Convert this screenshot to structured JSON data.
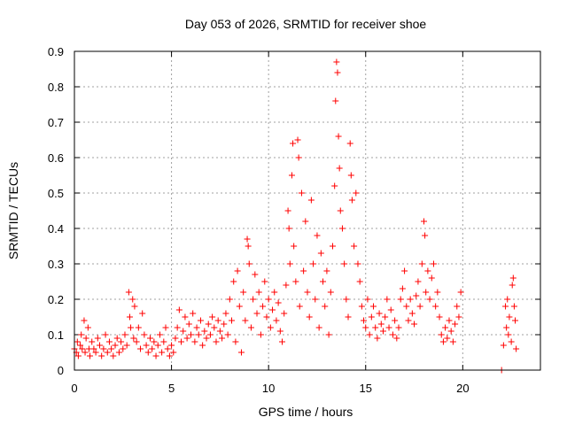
{
  "chart_data": {
    "type": "scatter",
    "title": "Day 053 of 2026, SRMTID for receiver shoe",
    "xlabel": "GPS time / hours",
    "ylabel": "SRMTID / TECUs",
    "xlim": [
      0,
      24
    ],
    "ylim": [
      0,
      0.9
    ],
    "xticks": [
      0,
      5,
      10,
      15,
      20
    ],
    "yticks": [
      0,
      0.1,
      0.2,
      0.3,
      0.4,
      0.5,
      0.6,
      0.7,
      0.8,
      0.9
    ],
    "xtick_labels": [
      "0",
      "5",
      "10",
      "15",
      "20"
    ],
    "ytick_labels": [
      "0",
      "0.1",
      "0.2",
      "0.3",
      "0.4",
      "0.5",
      "0.6",
      "0.7",
      "0.8",
      "0.9"
    ],
    "grid": true,
    "marker": "+",
    "color": "#ff0000",
    "series": [
      {
        "name": "SRMTID",
        "points": [
          [
            0.0,
            0.06
          ],
          [
            0.1,
            0.05
          ],
          [
            0.15,
            0.08
          ],
          [
            0.2,
            0.04
          ],
          [
            0.3,
            0.07
          ],
          [
            0.35,
            0.1
          ],
          [
            0.4,
            0.06
          ],
          [
            0.5,
            0.14
          ],
          [
            0.55,
            0.05
          ],
          [
            0.6,
            0.09
          ],
          [
            0.7,
            0.12
          ],
          [
            0.75,
            0.06
          ],
          [
            0.8,
            0.04
          ],
          [
            0.9,
            0.08
          ],
          [
            1.0,
            0.06
          ],
          [
            1.1,
            0.05
          ],
          [
            1.2,
            0.09
          ],
          [
            1.3,
            0.07
          ],
          [
            1.4,
            0.04
          ],
          [
            1.5,
            0.06
          ],
          [
            1.6,
            0.1
          ],
          [
            1.7,
            0.05
          ],
          [
            1.8,
            0.08
          ],
          [
            1.9,
            0.06
          ],
          [
            2.0,
            0.04
          ],
          [
            2.1,
            0.07
          ],
          [
            2.2,
            0.09
          ],
          [
            2.3,
            0.05
          ],
          [
            2.4,
            0.08
          ],
          [
            2.5,
            0.06
          ],
          [
            2.6,
            0.1
          ],
          [
            2.7,
            0.07
          ],
          [
            2.8,
            0.22
          ],
          [
            2.85,
            0.15
          ],
          [
            2.9,
            0.12
          ],
          [
            3.0,
            0.2
          ],
          [
            3.05,
            0.09
          ],
          [
            3.1,
            0.18
          ],
          [
            3.2,
            0.08
          ],
          [
            3.3,
            0.12
          ],
          [
            3.4,
            0.06
          ],
          [
            3.5,
            0.16
          ],
          [
            3.6,
            0.1
          ],
          [
            3.7,
            0.07
          ],
          [
            3.8,
            0.05
          ],
          [
            3.9,
            0.09
          ],
          [
            4.0,
            0.06
          ],
          [
            4.1,
            0.08
          ],
          [
            4.2,
            0.04
          ],
          [
            4.3,
            0.07
          ],
          [
            4.4,
            0.1
          ],
          [
            4.5,
            0.05
          ],
          [
            4.6,
            0.08
          ],
          [
            4.7,
            0.12
          ],
          [
            4.8,
            0.06
          ],
          [
            4.9,
            0.04
          ],
          [
            5.0,
            0.07
          ],
          [
            5.1,
            0.05
          ],
          [
            5.2,
            0.09
          ],
          [
            5.3,
            0.12
          ],
          [
            5.4,
            0.17
          ],
          [
            5.5,
            0.08
          ],
          [
            5.6,
            0.11
          ],
          [
            5.7,
            0.15
          ],
          [
            5.8,
            0.09
          ],
          [
            5.9,
            0.13
          ],
          [
            6.0,
            0.1
          ],
          [
            6.1,
            0.16
          ],
          [
            6.2,
            0.08
          ],
          [
            6.3,
            0.12
          ],
          [
            6.4,
            0.1
          ],
          [
            6.5,
            0.14
          ],
          [
            6.6,
            0.07
          ],
          [
            6.7,
            0.11
          ],
          [
            6.8,
            0.09
          ],
          [
            6.9,
            0.13
          ],
          [
            7.0,
            0.1
          ],
          [
            7.1,
            0.15
          ],
          [
            7.2,
            0.12
          ],
          [
            7.3,
            0.08
          ],
          [
            7.4,
            0.14
          ],
          [
            7.5,
            0.11
          ],
          [
            7.6,
            0.09
          ],
          [
            7.7,
            0.13
          ],
          [
            7.8,
            0.16
          ],
          [
            7.9,
            0.1
          ],
          [
            8.0,
            0.2
          ],
          [
            8.1,
            0.14
          ],
          [
            8.2,
            0.25
          ],
          [
            8.3,
            0.08
          ],
          [
            8.4,
            0.28
          ],
          [
            8.5,
            0.18
          ],
          [
            8.6,
            0.05
          ],
          [
            8.7,
            0.22
          ],
          [
            8.8,
            0.14
          ],
          [
            8.9,
            0.37
          ],
          [
            8.95,
            0.35
          ],
          [
            9.0,
            0.3
          ],
          [
            9.1,
            0.12
          ],
          [
            9.2,
            0.2
          ],
          [
            9.3,
            0.27
          ],
          [
            9.4,
            0.16
          ],
          [
            9.5,
            0.22
          ],
          [
            9.6,
            0.1
          ],
          [
            9.7,
            0.18
          ],
          [
            9.8,
            0.25
          ],
          [
            9.9,
            0.15
          ],
          [
            10.0,
            0.2
          ],
          [
            10.1,
            0.12
          ],
          [
            10.2,
            0.17
          ],
          [
            10.3,
            0.22
          ],
          [
            10.4,
            0.14
          ],
          [
            10.5,
            0.19
          ],
          [
            10.6,
            0.11
          ],
          [
            10.7,
            0.08
          ],
          [
            10.8,
            0.16
          ],
          [
            10.9,
            0.24
          ],
          [
            11.0,
            0.45
          ],
          [
            11.05,
            0.4
          ],
          [
            11.1,
            0.3
          ],
          [
            11.2,
            0.55
          ],
          [
            11.25,
            0.64
          ],
          [
            11.3,
            0.35
          ],
          [
            11.4,
            0.25
          ],
          [
            11.5,
            0.65
          ],
          [
            11.55,
            0.6
          ],
          [
            11.6,
            0.18
          ],
          [
            11.7,
            0.5
          ],
          [
            11.8,
            0.28
          ],
          [
            11.9,
            0.42
          ],
          [
            12.0,
            0.22
          ],
          [
            12.1,
            0.15
          ],
          [
            12.2,
            0.48
          ],
          [
            12.3,
            0.3
          ],
          [
            12.4,
            0.2
          ],
          [
            12.5,
            0.38
          ],
          [
            12.6,
            0.12
          ],
          [
            12.7,
            0.33
          ],
          [
            12.8,
            0.25
          ],
          [
            12.9,
            0.18
          ],
          [
            13.0,
            0.28
          ],
          [
            13.1,
            0.1
          ],
          [
            13.2,
            0.22
          ],
          [
            13.3,
            0.35
          ],
          [
            13.4,
            0.52
          ],
          [
            13.45,
            0.76
          ],
          [
            13.5,
            0.87
          ],
          [
            13.55,
            0.84
          ],
          [
            13.6,
            0.66
          ],
          [
            13.65,
            0.57
          ],
          [
            13.7,
            0.45
          ],
          [
            13.8,
            0.4
          ],
          [
            13.9,
            0.3
          ],
          [
            14.0,
            0.2
          ],
          [
            14.1,
            0.15
          ],
          [
            14.2,
            0.64
          ],
          [
            14.25,
            0.55
          ],
          [
            14.3,
            0.48
          ],
          [
            14.4,
            0.35
          ],
          [
            14.5,
            0.5
          ],
          [
            14.6,
            0.3
          ],
          [
            14.7,
            0.25
          ],
          [
            14.8,
            0.18
          ],
          [
            14.9,
            0.14
          ],
          [
            15.0,
            0.12
          ],
          [
            15.1,
            0.2
          ],
          [
            15.2,
            0.1
          ],
          [
            15.3,
            0.15
          ],
          [
            15.4,
            0.18
          ],
          [
            15.5,
            0.12
          ],
          [
            15.6,
            0.09
          ],
          [
            15.7,
            0.16
          ],
          [
            15.8,
            0.13
          ],
          [
            15.9,
            0.11
          ],
          [
            16.0,
            0.15
          ],
          [
            16.1,
            0.2
          ],
          [
            16.2,
            0.12
          ],
          [
            16.3,
            0.17
          ],
          [
            16.4,
            0.1
          ],
          [
            16.5,
            0.14
          ],
          [
            16.6,
            0.09
          ],
          [
            16.7,
            0.12
          ],
          [
            16.8,
            0.2
          ],
          [
            16.9,
            0.23
          ],
          [
            17.0,
            0.28
          ],
          [
            17.1,
            0.18
          ],
          [
            17.2,
            0.14
          ],
          [
            17.3,
            0.2
          ],
          [
            17.4,
            0.16
          ],
          [
            17.5,
            0.13
          ],
          [
            17.6,
            0.21
          ],
          [
            17.7,
            0.25
          ],
          [
            17.8,
            0.18
          ],
          [
            17.9,
            0.3
          ],
          [
            18.0,
            0.42
          ],
          [
            18.05,
            0.38
          ],
          [
            18.1,
            0.22
          ],
          [
            18.2,
            0.28
          ],
          [
            18.3,
            0.2
          ],
          [
            18.4,
            0.26
          ],
          [
            18.5,
            0.3
          ],
          [
            18.6,
            0.18
          ],
          [
            18.7,
            0.22
          ],
          [
            18.8,
            0.15
          ],
          [
            18.9,
            0.1
          ],
          [
            19.0,
            0.08
          ],
          [
            19.1,
            0.12
          ],
          [
            19.2,
            0.09
          ],
          [
            19.3,
            0.14
          ],
          [
            19.4,
            0.11
          ],
          [
            19.5,
            0.08
          ],
          [
            19.6,
            0.13
          ],
          [
            19.7,
            0.18
          ],
          [
            19.8,
            0.15
          ],
          [
            19.9,
            0.22
          ],
          [
            22.0,
            0.0
          ],
          [
            22.1,
            0.07
          ],
          [
            22.2,
            0.18
          ],
          [
            22.25,
            0.12
          ],
          [
            22.3,
            0.2
          ],
          [
            22.35,
            0.1
          ],
          [
            22.4,
            0.15
          ],
          [
            22.5,
            0.08
          ],
          [
            22.55,
            0.24
          ],
          [
            22.6,
            0.26
          ],
          [
            22.65,
            0.18
          ],
          [
            22.7,
            0.14
          ],
          [
            22.75,
            0.06
          ]
        ]
      }
    ]
  }
}
